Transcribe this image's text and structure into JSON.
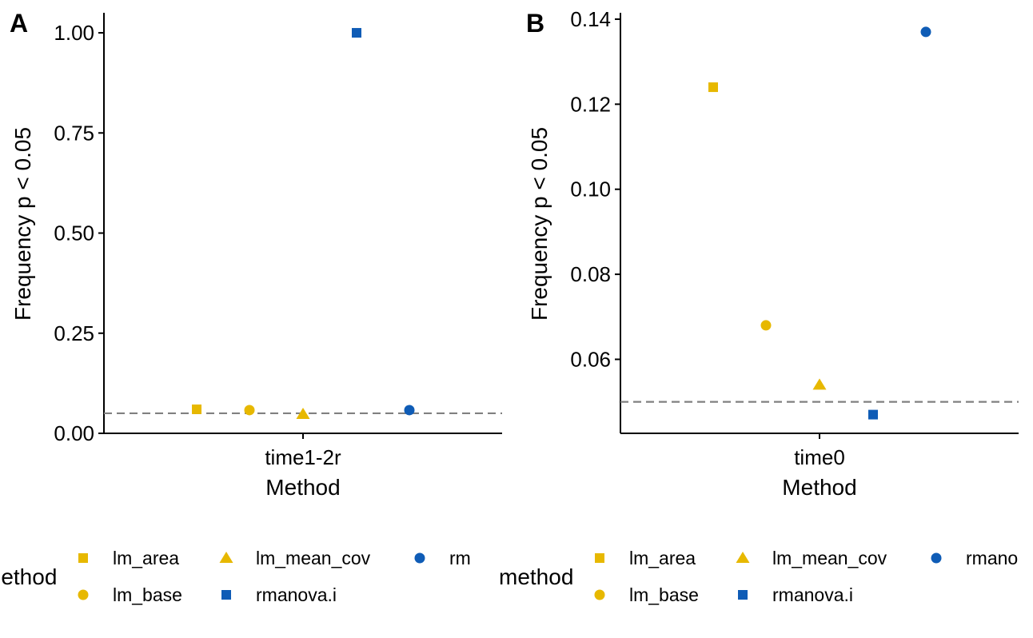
{
  "colors": {
    "lm": "#E7B800",
    "rmanova": "#0F5CB6",
    "refline": "#808080"
  },
  "chart_data": [
    {
      "panel": "A",
      "type": "scatter",
      "xlabel": "Method",
      "ylabel": "Frequency p < 0.05",
      "categories": [
        "time1-2r"
      ],
      "ylim": [
        0,
        1.05
      ],
      "yticks": [
        0.0,
        0.25,
        0.5,
        0.75,
        1.0
      ],
      "ytick_labels": [
        "0.00",
        "0.25",
        "0.50",
        "0.75",
        "1.00"
      ],
      "reference_line": 0.05,
      "series": [
        {
          "name": "lm_area",
          "shape": "square",
          "color": "#E7B800",
          "x": "time1-2r",
          "y": 0.06
        },
        {
          "name": "lm_base",
          "shape": "circle",
          "color": "#E7B800",
          "x": "time1-2r",
          "y": 0.058
        },
        {
          "name": "lm_mean_cov",
          "shape": "triangle",
          "color": "#E7B800",
          "x": "time1-2r",
          "y": 0.048
        },
        {
          "name": "rmanova.i",
          "shape": "square",
          "color": "#0F5CB6",
          "x": "time1-2r",
          "y": 1.0
        },
        {
          "name": "rmanova",
          "shape": "circle",
          "color": "#0F5CB6",
          "x": "time1-2r",
          "y": 0.058
        }
      ],
      "legend": {
        "title": "method",
        "position": "bottom",
        "entries": [
          "lm_area",
          "lm_mean_cov",
          "rm",
          "lm_base",
          "rmanova.i"
        ]
      }
    },
    {
      "panel": "B",
      "type": "scatter",
      "xlabel": "Method",
      "ylabel": "Frequency p < 0.05",
      "categories": [
        "time0"
      ],
      "ylim": [
        0.0426,
        0.1415
      ],
      "yticks": [
        0.06,
        0.08,
        0.1,
        0.12,
        0.14
      ],
      "ytick_labels": [
        "0.06",
        "0.08",
        "0.10",
        "0.12",
        "0.14"
      ],
      "reference_line": 0.05,
      "series": [
        {
          "name": "lm_area",
          "shape": "square",
          "color": "#E7B800",
          "x": "time0",
          "y": 0.124
        },
        {
          "name": "lm_base",
          "shape": "circle",
          "color": "#E7B800",
          "x": "time0",
          "y": 0.068
        },
        {
          "name": "lm_mean_cov",
          "shape": "triangle",
          "color": "#E7B800",
          "x": "time0",
          "y": 0.054
        },
        {
          "name": "rmanova.i",
          "shape": "square",
          "color": "#0F5CB6",
          "x": "time0",
          "y": 0.047
        },
        {
          "name": "rmanova",
          "shape": "circle",
          "color": "#0F5CB6",
          "x": "time0",
          "y": 0.137
        }
      ],
      "legend": {
        "title": "method",
        "position": "bottom",
        "entries": [
          "lm_area",
          "lm_mean_cov",
          "rmano",
          "lm_base",
          "rmanova.i"
        ]
      }
    }
  ]
}
